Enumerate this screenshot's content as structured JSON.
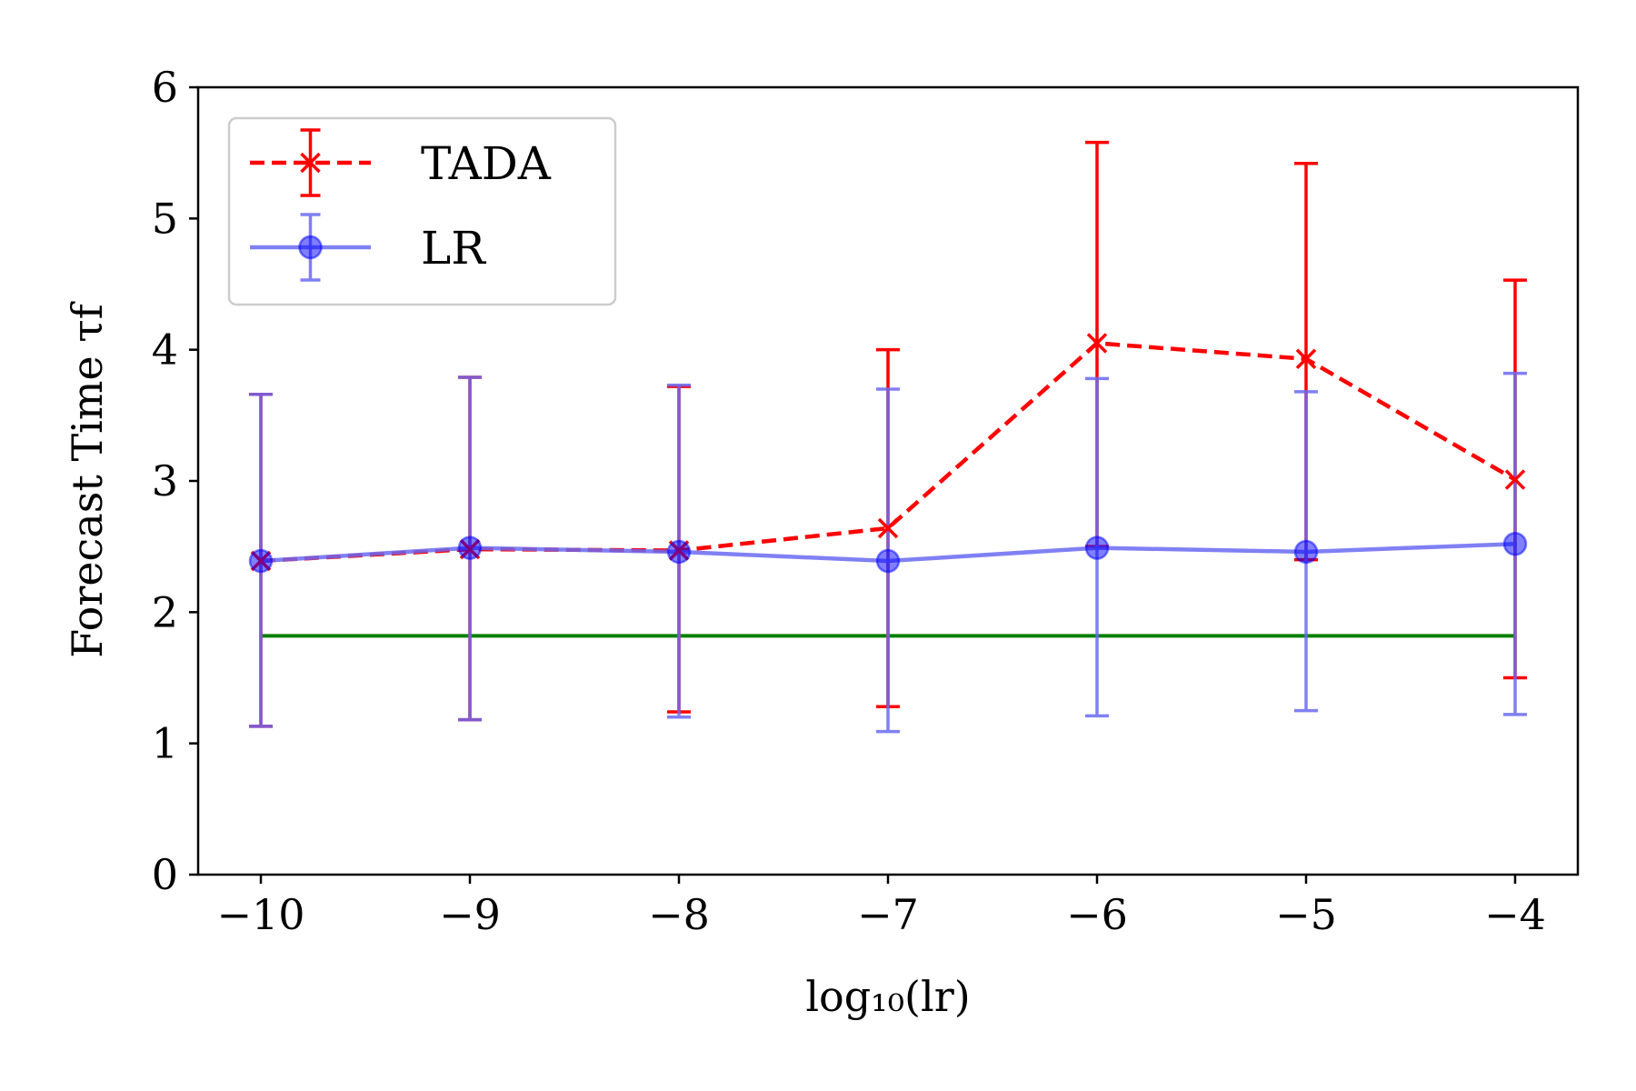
{
  "chart_data": {
    "type": "line",
    "title": "",
    "xlabel": "log₁₀(lr)",
    "ylabel": "Forecast Time τf",
    "xlim": [
      -10.3,
      -3.7
    ],
    "ylim": [
      0,
      6
    ],
    "grid": false,
    "legend_position": "top-left",
    "x": [
      -10,
      -9,
      -8,
      -7,
      -6,
      -5,
      -4
    ],
    "x_tick_labels": [
      "−10",
      "−9",
      "−8",
      "−7",
      "−6",
      "−5",
      "−4"
    ],
    "y_ticks": [
      0,
      1,
      2,
      3,
      4,
      5,
      6
    ],
    "y_tick_labels": [
      "0",
      "1",
      "2",
      "3",
      "4",
      "5",
      "6"
    ],
    "series": [
      {
        "name": "TADA",
        "color": "#ff0000",
        "line_style": "dashed",
        "marker": "x",
        "values": [
          2.39,
          2.48,
          2.47,
          2.64,
          4.05,
          3.93,
          3.01
        ],
        "err_low": [
          1.13,
          1.18,
          1.24,
          1.28,
          2.5,
          2.4,
          1.5
        ],
        "err_high": [
          3.66,
          3.79,
          3.72,
          4.0,
          5.58,
          5.42,
          4.53
        ]
      },
      {
        "name": "LR",
        "color": "#6a6af2",
        "line_style": "solid",
        "marker": "circle",
        "values": [
          2.39,
          2.49,
          2.46,
          2.39,
          2.49,
          2.46,
          2.52
        ],
        "err_low": [
          1.13,
          1.18,
          1.2,
          1.09,
          1.21,
          1.25,
          1.22
        ],
        "err_high": [
          3.66,
          3.79,
          3.73,
          3.7,
          3.78,
          3.68,
          3.82
        ]
      }
    ],
    "reference_line": {
      "value": 1.82,
      "x_start": -10,
      "x_end": -4,
      "color": "#008000"
    }
  }
}
